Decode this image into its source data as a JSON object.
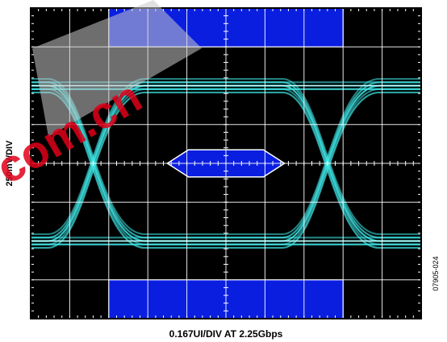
{
  "chart_data": {
    "type": "eye diagram",
    "title": "",
    "xlabel": "0.167UI/DIV AT 2.25Gbps",
    "ylabel": "250mV/DIV",
    "figure_id": "07905-024",
    "watermark_text": "com.cn",
    "grid": true,
    "divisions": {
      "x": 10,
      "y": 8
    },
    "colors": {
      "background": "#000000",
      "grid": "#ffffff",
      "trace": "#40e8e8",
      "mask": "#0a1ee0",
      "mask_edge": "#ffffff"
    },
    "masks": [
      {
        "name": "top-mask",
        "shape": "rectangle",
        "x_div": [
          2,
          8
        ],
        "y_div": [
          7,
          8
        ]
      },
      {
        "name": "bottom-mask",
        "shape": "rectangle",
        "x_div": [
          2,
          8
        ],
        "y_div": [
          0,
          1
        ]
      },
      {
        "name": "center-mask",
        "shape": "hexagon",
        "x_div": [
          3.5,
          6.5
        ],
        "y_div": [
          3.65,
          4.35
        ]
      }
    ],
    "eye": {
      "crossings_x_div": [
        2,
        8
      ],
      "high_level_y_div": 6.0,
      "low_level_y_div": 2.0,
      "crossing_level_y_div": 4.0,
      "trace_thickness_div": 0.35
    }
  }
}
